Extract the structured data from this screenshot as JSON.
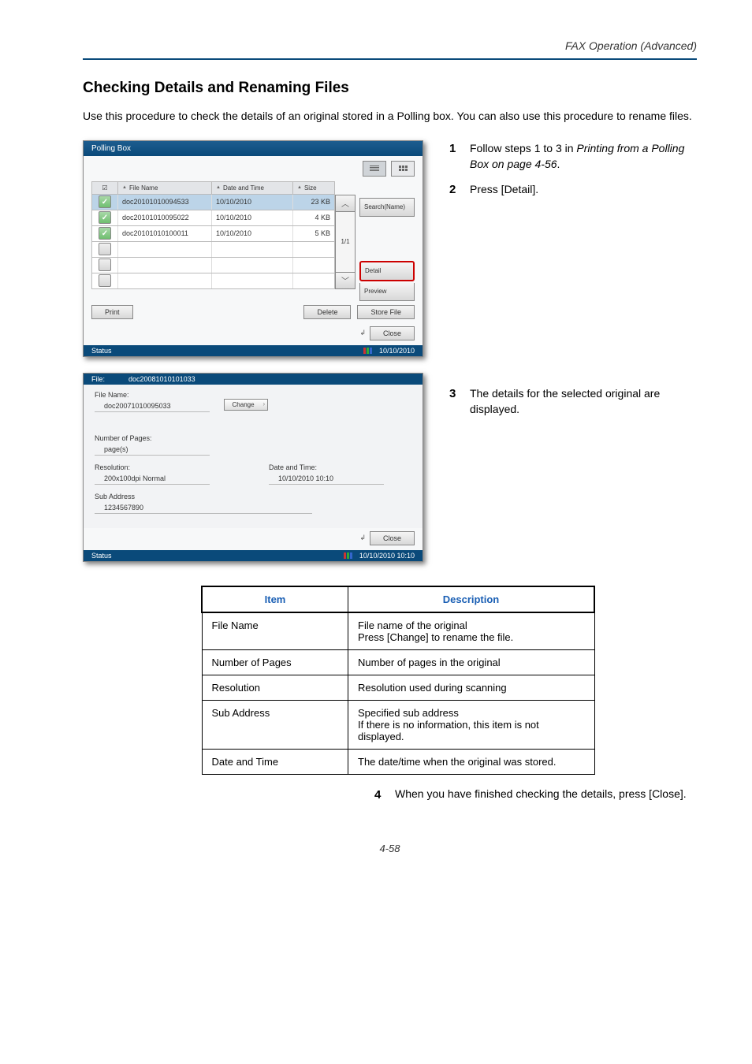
{
  "header": {
    "chapter": "FAX Operation (Advanced)"
  },
  "section": {
    "title": "Checking Details and Renaming Files"
  },
  "intro": "Use this procedure to check the details of an original stored in a Polling box. You can also use this procedure to rename files.",
  "steps": {
    "s1": {
      "num": "1",
      "text_a": "Follow steps 1 to 3 in ",
      "text_i": "Printing from a Polling Box on page 4-56",
      "text_b": "."
    },
    "s2": {
      "num": "2",
      "text": "Press [Detail]."
    },
    "s3": {
      "num": "3",
      "text": "The details for the selected original are displayed."
    },
    "s4": {
      "num": "4",
      "text": "When you have finished checking the details, press [Close]."
    }
  },
  "polling_panel": {
    "title": "Polling Box",
    "cols": {
      "name": "File Name",
      "date": "Date and Time",
      "size": "Size"
    },
    "rows": [
      {
        "checked": true,
        "sel": true,
        "name": "doc20101010094533",
        "date": "10/10/2010",
        "size": "23 KB"
      },
      {
        "checked": true,
        "sel": false,
        "name": "doc20101010095022",
        "date": "10/10/2010",
        "size": "4 KB"
      },
      {
        "checked": true,
        "sel": false,
        "name": "doc20101010100011",
        "date": "10/10/2010",
        "size": "5 KB"
      },
      {
        "checked": false,
        "sel": false,
        "name": "",
        "date": "",
        "size": ""
      },
      {
        "checked": false,
        "sel": false,
        "name": "",
        "date": "",
        "size": ""
      },
      {
        "checked": false,
        "sel": false,
        "name": "",
        "date": "",
        "size": ""
      }
    ],
    "page_indicator": "1/1",
    "side": {
      "search": "Search(Name)",
      "detail": "Detail",
      "preview": "Preview"
    },
    "footer": {
      "print": "Print",
      "delete": "Delete",
      "store": "Store File",
      "close": "Close"
    },
    "status": {
      "label": "Status",
      "time": "10/10/2010"
    }
  },
  "detail_panel": {
    "file_key": "File:",
    "file_val": "doc20081010101033",
    "name_label": "File Name:",
    "name_val": "doc20071010095033",
    "change": "Change",
    "pages_label": "Number of Pages:",
    "pages_val": "page(s)",
    "res_label": "Resolution:",
    "res_val": "200x100dpi Normal",
    "dt_label": "Date and Time:",
    "dt_val": "10/10/2010  10:10",
    "sub_label": "Sub Address",
    "sub_val": "1234567890",
    "close": "Close",
    "status": {
      "label": "Status",
      "time": "10/10/2010  10:10"
    }
  },
  "desc_table": {
    "headers": {
      "item": "Item",
      "desc": "Description"
    },
    "rows": [
      {
        "item": "File Name",
        "desc": "File name of the original\nPress [Change] to rename the file."
      },
      {
        "item": "Number of Pages",
        "desc": "Number of pages in the original"
      },
      {
        "item": "Resolution",
        "desc": "Resolution used during scanning"
      },
      {
        "item": "Sub Address",
        "desc": "Specified sub address\nIf there is no information, this item is not displayed."
      },
      {
        "item": "Date and Time",
        "desc": "The date/time when the original was stored."
      }
    ]
  },
  "page_number": "4-58",
  "colors": {
    "accent": "#0a4a7a",
    "highlight_border": "#c00",
    "header_link": "#1a5fb4",
    "bar_colors": [
      "#cc3333",
      "#33aa33",
      "#3366cc"
    ]
  }
}
